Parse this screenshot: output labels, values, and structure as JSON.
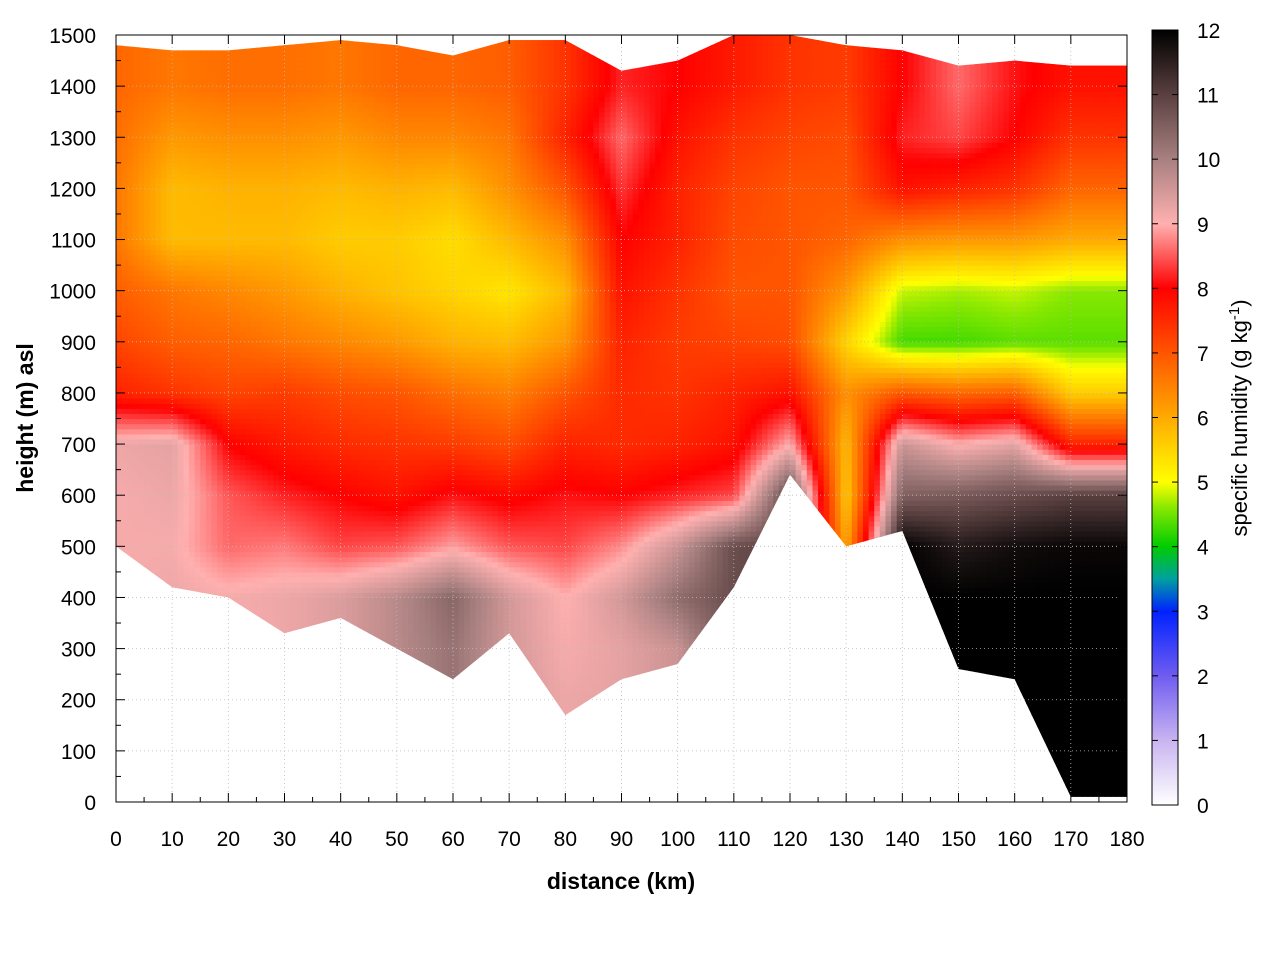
{
  "chart_data": {
    "type": "heatmap",
    "title": "",
    "xlabel": "distance (km)",
    "ylabel": "height (m) asl",
    "colorbar_label": "specific humidity (g kg-1)",
    "colorbar_label_parts": {
      "prefix": "specific humidity (g kg",
      "superscript": "-1",
      "suffix": ")"
    },
    "xlim": [
      0,
      180
    ],
    "ylim": [
      0,
      1500
    ],
    "clim": [
      0,
      12
    ],
    "x_ticks": [
      "0",
      "10",
      "20",
      "30",
      "40",
      "50",
      "60",
      "70",
      "80",
      "90",
      "100",
      "110",
      "120",
      "130",
      "140",
      "150",
      "160",
      "170",
      "180"
    ],
    "y_ticks": [
      "0",
      "100",
      "200",
      "300",
      "400",
      "500",
      "600",
      "700",
      "800",
      "900",
      "1000",
      "1100",
      "1200",
      "1300",
      "1400",
      "1500"
    ],
    "colorbar_ticks": [
      "0",
      "1",
      "2",
      "3",
      "4",
      "5",
      "6",
      "7",
      "8",
      "9",
      "10",
      "11",
      "12"
    ],
    "grid": true,
    "colormap": [
      {
        "value": 0,
        "color": "#ffffff"
      },
      {
        "value": 1,
        "color": "#c8b4f0"
      },
      {
        "value": 2,
        "color": "#6f5cf0"
      },
      {
        "value": 3,
        "color": "#0022ff"
      },
      {
        "value": 3.5,
        "color": "#00a0a0"
      },
      {
        "value": 4,
        "color": "#00cc00"
      },
      {
        "value": 4.6,
        "color": "#88e800"
      },
      {
        "value": 5,
        "color": "#ffff00"
      },
      {
        "value": 6,
        "color": "#ffaa00"
      },
      {
        "value": 7,
        "color": "#ff5500"
      },
      {
        "value": 8,
        "color": "#ff0000"
      },
      {
        "value": 9,
        "color": "#ffb0b0"
      },
      {
        "value": 10,
        "color": "#a88080"
      },
      {
        "value": 11,
        "color": "#5a4040"
      },
      {
        "value": 12,
        "color": "#000000"
      }
    ],
    "x": [
      0,
      10,
      20,
      30,
      40,
      50,
      60,
      70,
      80,
      90,
      100,
      110,
      120,
      130,
      140,
      150,
      160,
      170,
      180
    ],
    "heights": [
      0,
      100,
      200,
      300,
      400,
      500,
      600,
      700,
      800,
      900,
      1000,
      1100,
      1200,
      1300,
      1400,
      1500
    ],
    "data_bottom_height": [
      500,
      420,
      400,
      330,
      360,
      300,
      240,
      330,
      170,
      240,
      270,
      420,
      640,
      500,
      530,
      260,
      240,
      10,
      10
    ],
    "data_top_height": [
      1480,
      1470,
      1470,
      1480,
      1490,
      1480,
      1460,
      1490,
      1490,
      1430,
      1450,
      1500,
      1500,
      1480,
      1470,
      1440,
      1450,
      1440,
      1440
    ],
    "values": [
      [
        null,
        null,
        null,
        null,
        null,
        null,
        null,
        null,
        null,
        null,
        null,
        null,
        null,
        null,
        null,
        null,
        null,
        12,
        12
      ],
      [
        null,
        null,
        null,
        null,
        null,
        null,
        null,
        null,
        null,
        null,
        null,
        null,
        null,
        null,
        null,
        null,
        null,
        12,
        12
      ],
      [
        null,
        null,
        null,
        null,
        null,
        null,
        null,
        null,
        9.2,
        null,
        null,
        null,
        null,
        null,
        null,
        null,
        null,
        12,
        12
      ],
      [
        null,
        null,
        null,
        9.2,
        null,
        null,
        10.2,
        null,
        9.1,
        9.3,
        9.6,
        null,
        null,
        null,
        null,
        12,
        12,
        12,
        12
      ],
      [
        null,
        9.2,
        9.1,
        9.2,
        9.4,
        9.8,
        10.4,
        9.5,
        9,
        9.5,
        10.3,
        null,
        null,
        10,
        12,
        12,
        12,
        12,
        12
      ],
      [
        9.1,
        9.1,
        8.6,
        8.7,
        8.4,
        8.5,
        8.9,
        8.5,
        8.4,
        8.8,
        9.6,
        10.8,
        null,
        6,
        12,
        11.6,
        11.8,
        11.9,
        11.9
      ],
      [
        9.1,
        9.2,
        8.5,
        8.2,
        8,
        7.8,
        8.1,
        7.9,
        8.1,
        8,
        8.2,
        8.4,
        11,
        5.6,
        10.5,
        10.6,
        10.8,
        11,
        11
      ],
      [
        9.2,
        9.3,
        8,
        7.7,
        7.5,
        7.4,
        7.3,
        7.1,
        7.6,
        7.5,
        7.6,
        7.8,
        9,
        5.8,
        9.6,
        9,
        9.3,
        7.6,
        7.6
      ],
      [
        7.6,
        7.4,
        7.2,
        7.3,
        7.1,
        7,
        6.7,
        6.5,
        7,
        7.5,
        7.4,
        7.6,
        7.8,
        6.3,
        7,
        6.8,
        6.9,
        5.6,
        5.6
      ],
      [
        7.2,
        6.9,
        6.8,
        6.6,
        6.4,
        6.2,
        5.9,
        5.8,
        6.2,
        7.6,
        7.3,
        7.2,
        7.1,
        5.5,
        4.3,
        4.3,
        4.4,
        4.4,
        4.4
      ],
      [
        6.9,
        6.6,
        6.4,
        6.2,
        5.9,
        5.7,
        5.5,
        5.3,
        5.8,
        7.8,
        7.4,
        7,
        7,
        6.2,
        4.8,
        4.7,
        4.8,
        4.6,
        4.6
      ],
      [
        6.6,
        5.8,
        5.8,
        5.8,
        5.6,
        5.6,
        5.4,
        5.8,
        6.3,
        8,
        7.6,
        7.1,
        7,
        6.8,
        6.3,
        6.2,
        6.2,
        6,
        6
      ],
      [
        6.6,
        5.8,
        5.9,
        5.9,
        5.8,
        5.9,
        5.8,
        6.3,
        7,
        8.3,
        7.6,
        7.2,
        7,
        7,
        7.8,
        7.6,
        7.4,
        6.8,
        6.8
      ],
      [
        6.7,
        6.2,
        6.3,
        6.3,
        6.2,
        6.4,
        6.4,
        6.6,
        7.6,
        8.6,
        7.8,
        7.4,
        7.2,
        7.1,
        8.2,
        8.4,
        8,
        7.4,
        7.4
      ],
      [
        6.8,
        6.6,
        6.7,
        6.7,
        6.6,
        6.8,
        6.8,
        6.9,
        7.4,
        8.2,
        8,
        7.7,
        7.4,
        7.3,
        8,
        8.6,
        8.1,
        7.8,
        7.8
      ],
      [
        6.8,
        6.6,
        6.7,
        6.7,
        6.6,
        6.8,
        6.8,
        6.9,
        7.4,
        8.2,
        8,
        7.7,
        7.4,
        7.3,
        8,
        8.6,
        8.1,
        7.8,
        7.8
      ]
    ]
  }
}
